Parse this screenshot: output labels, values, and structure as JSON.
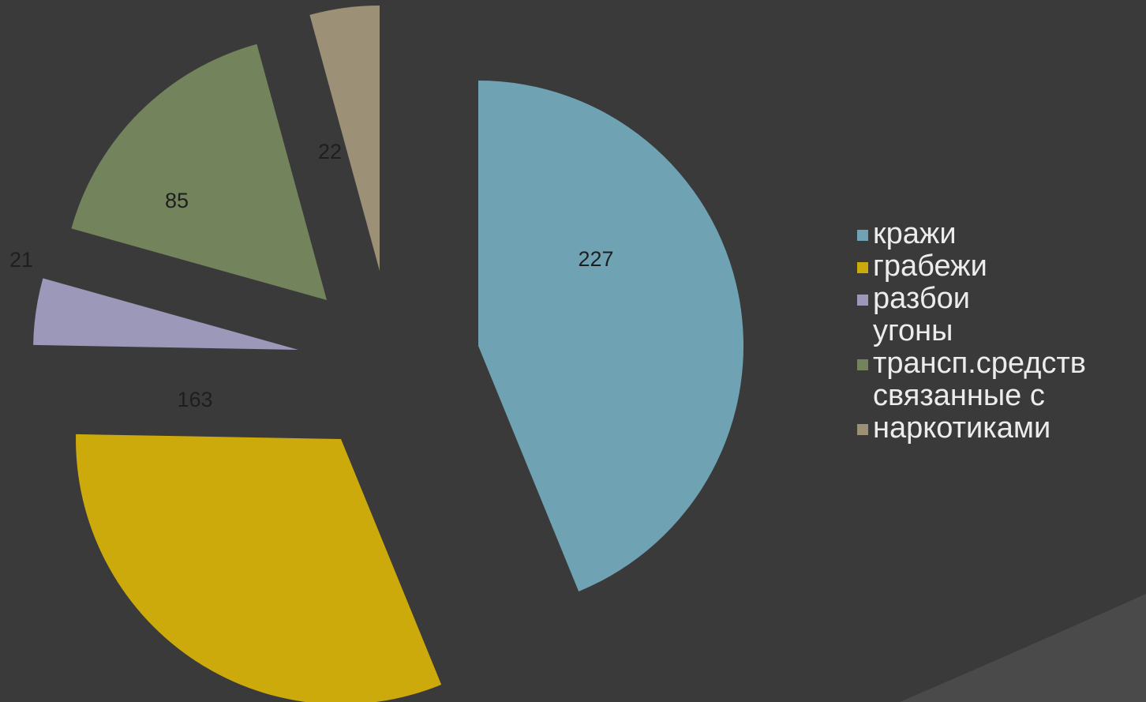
{
  "colors": {
    "background": "#3a3a3a",
    "label_text": "#1e1e1e",
    "legend_text": "#ececec"
  },
  "chart_data": {
    "type": "pie",
    "exploded": true,
    "start_angle_deg": 0,
    "direction": "clockwise",
    "legend_position": "right",
    "categories": [
      "кражи",
      "грабежи",
      "разбои",
      "угоны трансп.средств",
      "связанные с наркотиками"
    ],
    "legend_labels": [
      "кражи",
      "грабежи",
      "разбои",
      "угоны\nтрансп.средств",
      "связанные с\nнаркотиками"
    ],
    "values": [
      227,
      163,
      21,
      85,
      22
    ],
    "value_labels": [
      "227",
      "163",
      "21",
      "85",
      "22"
    ],
    "colors": [
      "#6fa3b4",
      "#ccaa0c",
      "#9b98b9",
      "#73845d",
      "#9c9077"
    ]
  }
}
